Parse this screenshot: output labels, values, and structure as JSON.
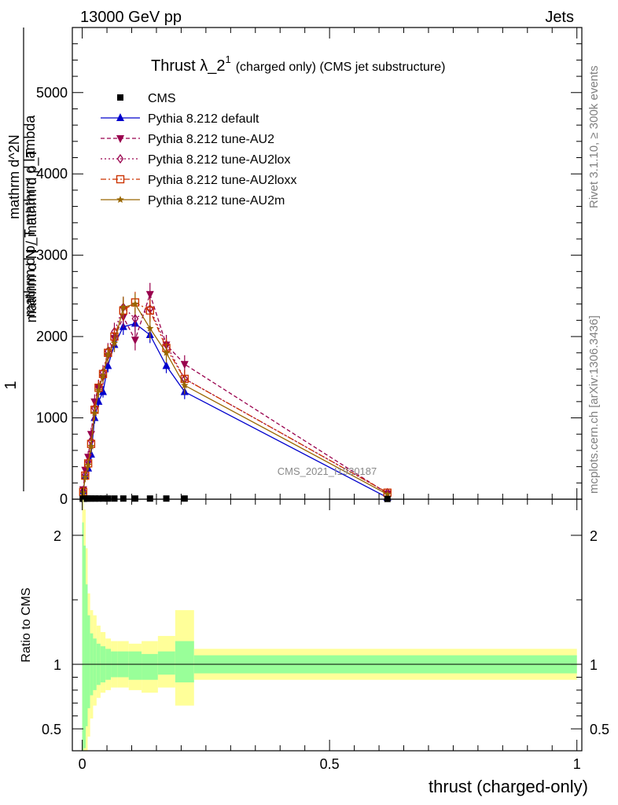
{
  "header": {
    "left": "13000 GeV pp",
    "right": "Jets"
  },
  "side": {
    "rivet": "Rivet 3.1.10, ≥ 300k events",
    "mcplots": "mcplots.cern.ch [arXiv:1306.3436]"
  },
  "watermark": "CMS_2021_I1920187",
  "chart_data": {
    "type": "line",
    "title": "Thrust λ_2^1 (charged only) (CMS jet substructure)",
    "title_main": "Thrust λ_2",
    "title_sup": "1",
    "title_sub": "(charged only) (CMS jet substructure)",
    "ylabel_parts": [
      "1",
      "mathrm d N / mathrm d p_T",
      "mathrm d^2N",
      "mathrm d p_T mathrm d lambda"
    ],
    "xlabel": "thrust (charged-only)",
    "ratio_ylabel": "Ratio to CMS",
    "xlim": [
      -0.02,
      1.01
    ],
    "ylim": [
      0,
      5800
    ],
    "ratio_ylim": [
      0.33,
      2.28
    ],
    "x_ticks": [
      0,
      0.5,
      1
    ],
    "x_tick_labels": [
      "0",
      "0.5",
      "1"
    ],
    "y_ticks": [
      0,
      1000,
      2000,
      3000,
      4000,
      5000
    ],
    "y_tick_labels": [
      "0",
      "1000",
      "2000",
      "3000",
      "4000",
      "5000"
    ],
    "ratio_y_ticks": [
      0.5,
      1,
      2
    ],
    "ratio_y_tick_labels": [
      "0.5",
      "1",
      "2"
    ],
    "legend_position": "top-left",
    "cms_points": {
      "x": [
        0.001,
        0.004,
        0.008,
        0.013,
        0.019,
        0.026,
        0.033,
        0.042,
        0.052,
        0.065,
        0.083,
        0.107,
        0.137,
        0.17,
        0.207,
        0.617
      ],
      "y": [
        5,
        6,
        8,
        8,
        8,
        8,
        8,
        8,
        8,
        8,
        8,
        8,
        8,
        8,
        8,
        3
      ]
    },
    "series": [
      {
        "name": "Pythia 8.212 default",
        "color": "#0000cc",
        "dash": "",
        "marker": "triangle-up",
        "x": [
          0.002,
          0.006,
          0.012,
          0.018,
          0.025,
          0.033,
          0.042,
          0.052,
          0.065,
          0.083,
          0.107,
          0.137,
          0.17,
          0.207,
          0.617
        ],
        "y": [
          100,
          280,
          380,
          550,
          1000,
          1200,
          1320,
          1640,
          1900,
          2120,
          2160,
          2020,
          1640,
          1320,
          20
        ],
        "err": [
          40,
          60,
          60,
          60,
          70,
          70,
          70,
          80,
          90,
          100,
          100,
          100,
          90,
          90,
          10
        ]
      },
      {
        "name": "Pythia 8.212 tune-AU2",
        "color": "#99004d",
        "dash": "5,3",
        "marker": "triangle-down",
        "x": [
          0.002,
          0.006,
          0.012,
          0.018,
          0.025,
          0.033,
          0.042,
          0.052,
          0.065,
          0.083,
          0.107,
          0.137,
          0.17,
          0.207,
          0.617
        ],
        "y": [
          120,
          360,
          520,
          800,
          1200,
          1380,
          1500,
          1760,
          1980,
          2240,
          1960,
          2520,
          1900,
          1660,
          70
        ],
        "err": [
          40,
          60,
          70,
          80,
          90,
          90,
          90,
          100,
          110,
          130,
          130,
          140,
          120,
          110,
          20
        ]
      },
      {
        "name": "Pythia 8.212 tune-AU2lox",
        "color": "#99004d",
        "dash": "2,3",
        "marker": "diamond-open",
        "x": [
          0.002,
          0.006,
          0.012,
          0.018,
          0.025,
          0.033,
          0.042,
          0.052,
          0.065,
          0.083,
          0.107,
          0.137,
          0.17,
          0.207,
          0.617
        ],
        "y": [
          100,
          300,
          460,
          720,
          1120,
          1380,
          1560,
          1820,
          2060,
          2360,
          2220,
          2340,
          1900,
          1480,
          80
        ],
        "err": [
          40,
          60,
          70,
          80,
          90,
          90,
          90,
          100,
          110,
          130,
          130,
          140,
          120,
          110,
          20
        ]
      },
      {
        "name": "Pythia 8.212 tune-AU2loxx",
        "color": "#cc3300",
        "dash": "7,3,2,3",
        "marker": "square-open",
        "x": [
          0.002,
          0.006,
          0.012,
          0.018,
          0.025,
          0.033,
          0.042,
          0.052,
          0.065,
          0.083,
          0.107,
          0.137,
          0.17,
          0.207,
          0.617
        ],
        "y": [
          90,
          290,
          440,
          680,
          1100,
          1370,
          1540,
          1800,
          2000,
          2320,
          2420,
          2320,
          1860,
          1480,
          80
        ],
        "err": [
          40,
          60,
          70,
          80,
          90,
          90,
          90,
          100,
          110,
          130,
          130,
          140,
          120,
          110,
          20
        ]
      },
      {
        "name": "Pythia 8.212 tune-AU2m",
        "color": "#996600",
        "dash": "",
        "marker": "star",
        "x": [
          0.002,
          0.006,
          0.012,
          0.018,
          0.025,
          0.033,
          0.042,
          0.052,
          0.065,
          0.083,
          0.107,
          0.137,
          0.17,
          0.207,
          0.617
        ],
        "y": [
          80,
          270,
          420,
          650,
          1060,
          1340,
          1520,
          1780,
          1920,
          2360,
          2400,
          2100,
          1800,
          1400,
          60
        ],
        "err": [
          40,
          60,
          70,
          80,
          90,
          90,
          90,
          100,
          110,
          130,
          130,
          140,
          120,
          110,
          20
        ]
      }
    ],
    "ratio_band": {
      "edges": [
        0.0,
        0.003,
        0.007,
        0.011,
        0.016,
        0.022,
        0.029,
        0.037,
        0.047,
        0.058,
        0.072,
        0.094,
        0.12,
        0.153,
        0.188,
        0.226,
        1.0
      ],
      "yellow_lo": [
        0.2,
        0.2,
        0.3,
        0.44,
        0.58,
        0.68,
        0.74,
        0.78,
        0.8,
        0.82,
        0.82,
        0.8,
        0.78,
        0.82,
        0.68,
        0.88
      ],
      "yellow_hi": [
        2.28,
        2.2,
        1.9,
        1.55,
        1.42,
        1.38,
        1.3,
        1.25,
        1.2,
        1.18,
        1.18,
        1.16,
        1.18,
        1.22,
        1.42,
        1.12
      ],
      "green_lo": [
        0.3,
        0.35,
        0.52,
        0.66,
        0.76,
        0.8,
        0.84,
        0.86,
        0.88,
        0.9,
        0.9,
        0.88,
        0.88,
        0.92,
        0.86,
        0.93
      ],
      "green_hi": [
        2.1,
        1.92,
        1.62,
        1.38,
        1.24,
        1.2,
        1.16,
        1.14,
        1.12,
        1.1,
        1.1,
        1.1,
        1.08,
        1.1,
        1.18,
        1.07
      ]
    }
  }
}
